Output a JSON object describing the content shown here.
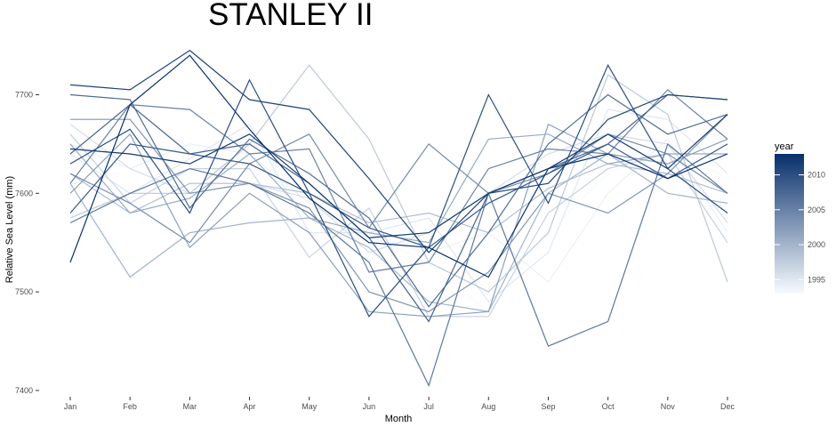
{
  "chart_data": {
    "type": "line",
    "title": "STANLEY II",
    "xlabel": "Month",
    "ylabel": "Relative Sea Level (mm)",
    "categories": [
      "Jan",
      "Feb",
      "Mar",
      "Apr",
      "May",
      "Jun",
      "Jul",
      "Aug",
      "Sep",
      "Oct",
      "Nov",
      "Dec"
    ],
    "ylim": [
      7390,
      7760
    ],
    "yticks": [
      7400,
      7500,
      7600,
      7700
    ],
    "grid": false,
    "legend": {
      "title": "year",
      "position": "right",
      "type": "colorbar",
      "range": [
        1993,
        2013
      ],
      "ticks": [
        1995,
        2000,
        2005,
        2010
      ],
      "low_color": "#f7fbff",
      "high_color": "#08306b"
    },
    "series": [
      {
        "year": 1993,
        "values": [
          7605,
          7650,
          7645,
          7662,
          7585,
          7560,
          7528,
          7480,
          7560,
          7620,
          7648,
          7615
        ]
      },
      {
        "year": 1994,
        "values": [
          7650,
          7625,
          7650,
          7640,
          7590,
          7555,
          7540,
          7560,
          7510,
          7600,
          7655,
          7560
        ]
      },
      {
        "year": 1995,
        "values": [
          7640,
          7600,
          7635,
          7670,
          7560,
          7560,
          7575,
          7490,
          7540,
          7685,
          7675,
          7620
        ]
      },
      {
        "year": 1996,
        "values": [
          7670,
          7625,
          7600,
          7610,
          7595,
          7540,
          7560,
          7600,
          7640,
          7660,
          7650,
          7570
        ]
      },
      {
        "year": 1997,
        "values": [
          7660,
          7590,
          7625,
          7625,
          7535,
          7585,
          7475,
          7475,
          7580,
          7625,
          7640,
          7550
        ]
      },
      {
        "year": 1998,
        "values": [
          7575,
          7600,
          7600,
          7650,
          7730,
          7655,
          7530,
          7500,
          7560,
          7720,
          7680,
          7510
        ]
      },
      {
        "year": 1999,
        "values": [
          7620,
          7580,
          7610,
          7610,
          7600,
          7570,
          7580,
          7560,
          7605,
          7630,
          7620,
          7600
        ]
      },
      {
        "year": 2000,
        "values": [
          7610,
          7515,
          7560,
          7570,
          7575,
          7545,
          7490,
          7480,
          7600,
          7640,
          7600,
          7590
        ]
      },
      {
        "year": 2001,
        "values": [
          7650,
          7580,
          7595,
          7640,
          7575,
          7560,
          7550,
          7655,
          7660,
          7630,
          7640,
          7640
        ]
      },
      {
        "year": 2002,
        "values": [
          7600,
          7660,
          7545,
          7600,
          7560,
          7480,
          7475,
          7480,
          7670,
          7640,
          7630,
          7655
        ]
      },
      {
        "year": 2003,
        "values": [
          7675,
          7675,
          7600,
          7610,
          7585,
          7500,
          7480,
          7520,
          7600,
          7580,
          7620,
          7680
        ]
      },
      {
        "year": 2004,
        "values": [
          7620,
          7590,
          7550,
          7630,
          7660,
          7565,
          7650,
          7600,
          7620,
          7660,
          7640,
          7600
        ]
      },
      {
        "year": 2005,
        "values": [
          7610,
          7690,
          7685,
          7640,
          7645,
          7520,
          7530,
          7625,
          7645,
          7640,
          7705,
          7655
        ]
      },
      {
        "year": 2006,
        "values": [
          7570,
          7600,
          7625,
          7610,
          7580,
          7530,
          7405,
          7600,
          7445,
          7470,
          7650,
          7600
        ]
      },
      {
        "year": 2007,
        "values": [
          7700,
          7695,
          7585,
          7655,
          7620,
          7575,
          7485,
          7560,
          7650,
          7700,
          7660,
          7680
        ]
      },
      {
        "year": 2008,
        "values": [
          7640,
          7690,
          7640,
          7650,
          7610,
          7555,
          7470,
          7600,
          7625,
          7650,
          7700,
          7695
        ]
      },
      {
        "year": 2009,
        "values": [
          7580,
          7650,
          7640,
          7630,
          7600,
          7565,
          7545,
          7590,
          7620,
          7650,
          7615,
          7650
        ]
      },
      {
        "year": 2010,
        "values": [
          7630,
          7665,
          7580,
          7715,
          7600,
          7475,
          7545,
          7700,
          7590,
          7730,
          7625,
          7580
        ]
      },
      {
        "year": 2011,
        "values": [
          7710,
          7705,
          7745,
          7695,
          7685,
          7615,
          7540,
          7600,
          7610,
          7675,
          7700,
          7695
        ]
      },
      {
        "year": 2012,
        "values": [
          7645,
          7640,
          7630,
          7660,
          7610,
          7555,
          7560,
          7600,
          7625,
          7660,
          7625,
          7680
        ]
      },
      {
        "year": 2013,
        "values": [
          7530,
          7690,
          7740,
          7665,
          7595,
          7550,
          7545,
          7515,
          7625,
          7640,
          7615,
          7640
        ]
      }
    ]
  }
}
